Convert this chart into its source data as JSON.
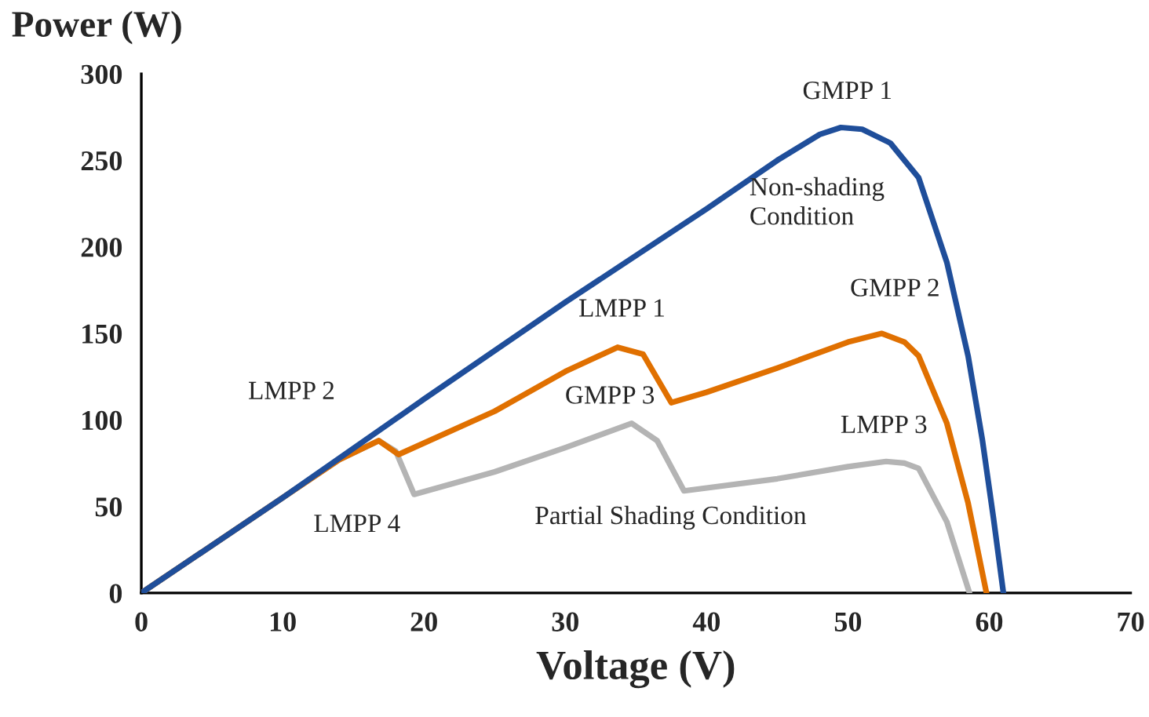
{
  "chart_data": {
    "type": "line",
    "xlabel": "Voltage (V)",
    "ylabel": "Power (W)",
    "xlim": [
      0,
      70
    ],
    "xticks": [
      0,
      10,
      20,
      30,
      40,
      50,
      60,
      70
    ],
    "ylim": [
      0,
      300
    ],
    "yticks": [
      0,
      50,
      100,
      150,
      200,
      250,
      300
    ],
    "grid": false,
    "legend": false,
    "marker": "none",
    "line_style": "solid",
    "series": [
      {
        "color": "#1f4e9a",
        "x": [
          0,
          10,
          20,
          30,
          40,
          45,
          48,
          49.5,
          51,
          53,
          55,
          57,
          58.5,
          59.5,
          60.3,
          61
        ],
        "values": [
          0,
          55,
          112,
          168,
          222,
          250,
          265,
          269,
          268,
          260,
          240,
          191,
          137,
          89,
          43,
          0
        ]
      },
      {
        "color": "#e07000",
        "x": [
          0,
          10,
          14,
          16.8,
          18.2,
          25,
          30,
          33.7,
          35.5,
          37.5,
          40,
          45,
          50,
          52.4,
          54,
          55,
          57,
          58.5,
          59.8
        ],
        "values": [
          0,
          55,
          77,
          88,
          80,
          105,
          128,
          142,
          138,
          110,
          116,
          130,
          145,
          150,
          145,
          137,
          98,
          52,
          0
        ]
      },
      {
        "color": "#b4b4b4",
        "x": [
          0,
          10,
          14,
          16.8,
          18,
          19.3,
          25,
          30,
          34.7,
          36.5,
          38.4,
          45,
          50,
          52.7,
          54,
          55,
          57,
          58.6
        ],
        "values": [
          0,
          55,
          77,
          88,
          82,
          57,
          70,
          84,
          98,
          88,
          59,
          66,
          73,
          76,
          75,
          72,
          41,
          0
        ]
      }
    ],
    "annotations": [
      {
        "text": "GMPP 1",
        "x": 49.5,
        "y": 269
      },
      "Non-shading\nCondition",
      {
        "text": "LMPP 1",
        "x": 33.7,
        "y": 142
      },
      {
        "text": "GMPP 2",
        "x": 52.4,
        "y": 150
      },
      {
        "text": "LMPP 2",
        "x": 16.8,
        "y": 88
      },
      {
        "text": "GMPP 3",
        "x": 34.7,
        "y": 98
      },
      {
        "text": "LMPP 3",
        "x": 52.7,
        "y": 76
      },
      {
        "text": "LMPP 4",
        "x": 16.8,
        "y": 88
      },
      "Partial Shading Condition"
    ]
  }
}
